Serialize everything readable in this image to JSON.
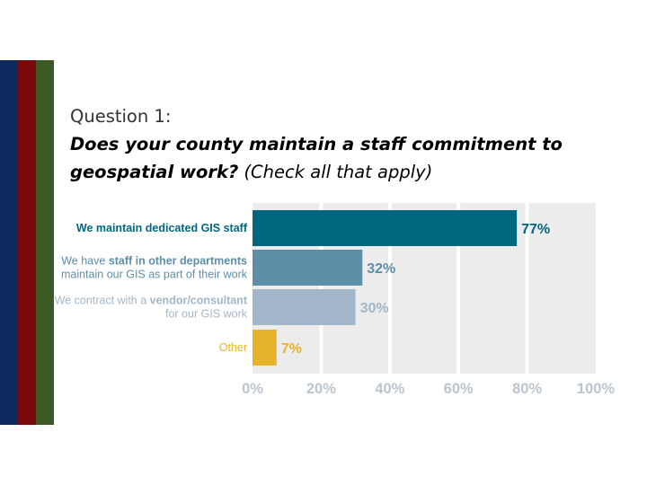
{
  "slide": {
    "stripe_colors": [
      "#0d2a5e",
      "#7a0a0a",
      "#3c5a25"
    ]
  },
  "question": {
    "label": "Question 1:",
    "line1_main": "Does your county maintain a staff commitment to",
    "line2_main": "geospatial work?",
    "line2_note": "(Check all that apply)"
  },
  "chart_data": {
    "type": "bar",
    "orientation": "horizontal",
    "categories": [
      "We maintain dedicated GIS staff",
      "We have staff in other departments maintain our GIS as part of their work",
      "We contract with a vendor/consultant for our GIS work",
      "Other"
    ],
    "category_lines": [
      [
        [
          {
            "t": "We maintain ",
            "b": true
          },
          {
            "t": "dedicated GIS staff",
            "b": true
          }
        ]
      ],
      [
        [
          {
            "t": "We have ",
            "b": false
          },
          {
            "t": "staff in other departments",
            "b": true
          }
        ],
        [
          {
            "t": "maintain our GIS as part of their work",
            "b": false
          }
        ]
      ],
      [
        [
          {
            "t": "We contract with a ",
            "b": false
          },
          {
            "t": "vendor/consultant",
            "b": true
          }
        ],
        [
          {
            "t": "for our GIS work",
            "b": false
          }
        ]
      ],
      [
        [
          {
            "t": "Other",
            "b": false
          }
        ]
      ]
    ],
    "values": [
      77,
      32,
      30,
      7
    ],
    "value_labels": [
      "77%",
      "32%",
      "30%",
      "7%"
    ],
    "bar_colors": [
      "#00677f",
      "#5d8fa8",
      "#a1b7c9",
      "#e8b32c"
    ],
    "label_colors": [
      "#00677f",
      "#5d8fa8",
      "#a1b7c9",
      "#e8b32c"
    ],
    "category_label_colors": [
      "#00677f",
      "#5d8fa8",
      "#a1b7c9",
      "#e8b32c"
    ],
    "xlim": [
      0,
      100
    ],
    "x_ticks": [
      "0%",
      "20%",
      "40%",
      "60%",
      "80%",
      "100%"
    ],
    "tick_color": "#b9c5cf",
    "plot_background": "#ececec",
    "gridline_color": "#ffffff",
    "grid": true,
    "title": "",
    "xlabel": "",
    "ylabel": ""
  }
}
